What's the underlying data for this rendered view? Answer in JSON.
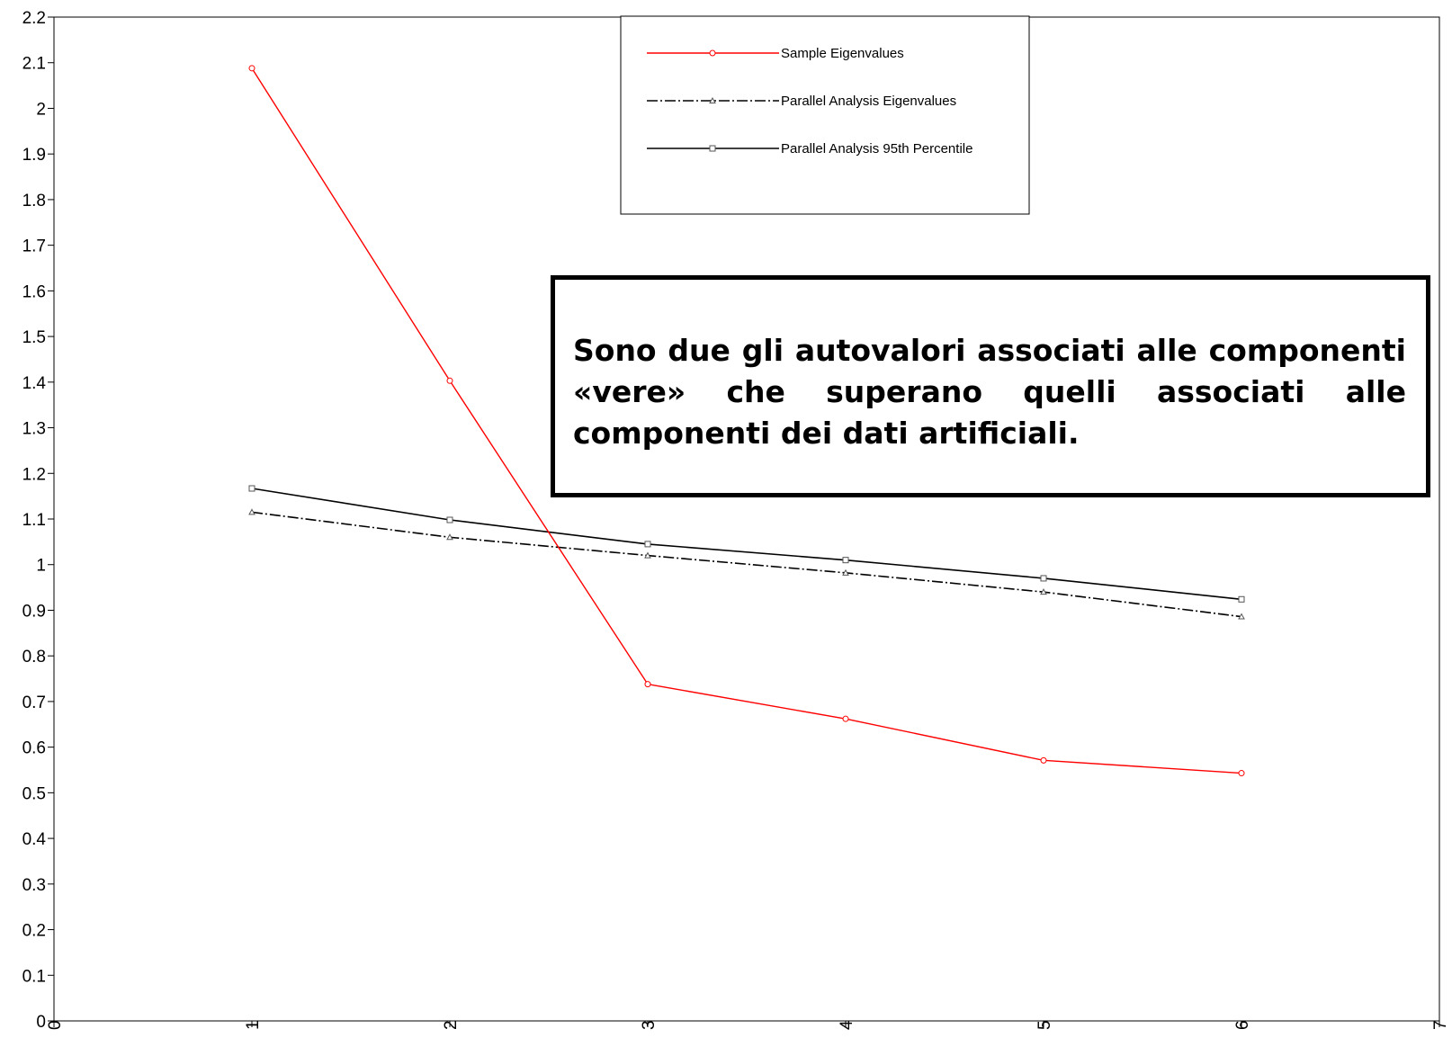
{
  "chart_data": {
    "type": "line",
    "title": "",
    "xlabel": "",
    "ylabel": "",
    "xlim": [
      0,
      7
    ],
    "ylim": [
      0,
      2.2
    ],
    "x_ticks": [
      "0",
      "1",
      "2",
      "3",
      "4",
      "5",
      "6",
      "7"
    ],
    "y_ticks": [
      "0",
      "0.1",
      "0.2",
      "0.3",
      "0.4",
      "0.5",
      "0.6",
      "0.7",
      "0.8",
      "0.9",
      "1",
      "1.1",
      "1.2",
      "1.3",
      "1.4",
      "1.5",
      "1.6",
      "1.7",
      "1.8",
      "1.9",
      "2",
      "2.1",
      "2.2"
    ],
    "grid": false,
    "legend_position": "top-center",
    "x": [
      1,
      2,
      3,
      4,
      5,
      6
    ],
    "series": [
      {
        "name": "Sample Eigenvalues",
        "values": [
          2.088,
          1.403,
          0.738,
          0.662,
          0.571,
          0.543
        ],
        "color": "#ff0000",
        "marker": "circle",
        "line_style": "solid"
      },
      {
        "name": "Parallel Analysis Eigenvalues",
        "values": [
          1.115,
          1.06,
          1.02,
          0.982,
          0.94,
          0.886
        ],
        "color": "#000000",
        "marker": "triangle",
        "line_style": "dash-dot"
      },
      {
        "name": "Parallel Analysis 95th Percentile",
        "values": [
          1.167,
          1.098,
          1.045,
          1.01,
          0.97,
          0.924
        ],
        "color": "#000000",
        "marker": "square",
        "line_style": "solid"
      }
    ]
  },
  "note": {
    "text": "Sono due gli autovalori associati alle componenti «vere» che superano quelli associati alle componenti dei dati artificiali."
  }
}
